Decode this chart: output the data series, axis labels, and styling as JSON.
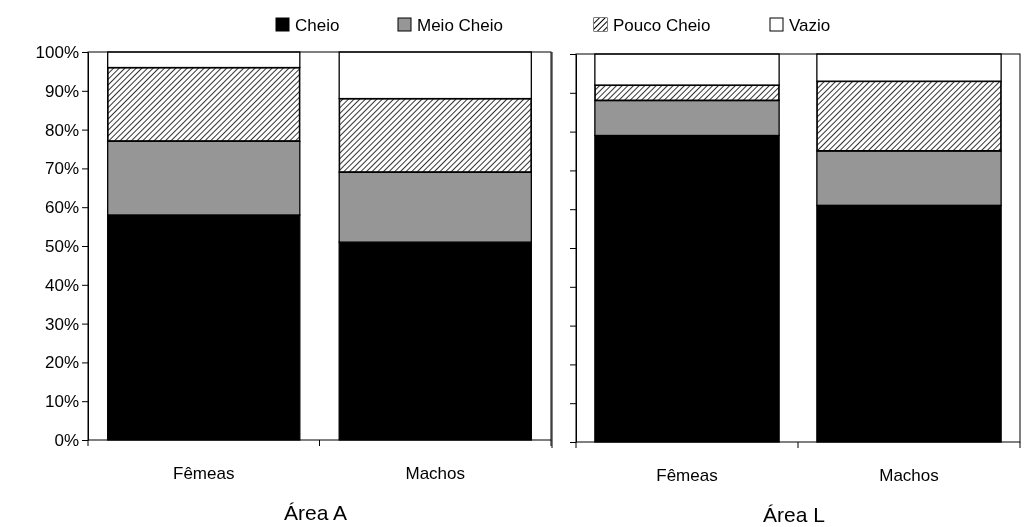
{
  "chart_data": [
    {
      "type": "bar",
      "xlabel": "Área A",
      "categories": [
        "Fêmeas",
        "Machos"
      ],
      "stacked": true,
      "ylim": [
        0,
        100
      ],
      "yticks": [
        {
          "value": 0,
          "label": "0%"
        },
        {
          "value": 10,
          "label": "10%"
        },
        {
          "value": 20,
          "label": "20%"
        },
        {
          "value": 30,
          "label": "30%"
        },
        {
          "value": 40,
          "label": "40%"
        },
        {
          "value": 50,
          "label": "50%"
        },
        {
          "value": 60,
          "label": "60%"
        },
        {
          "value": 70,
          "label": "70%"
        },
        {
          "value": 80,
          "label": "80%"
        },
        {
          "value": 90,
          "label": "90%"
        },
        {
          "value": 100,
          "label": "100%"
        }
      ],
      "legend": "top",
      "series": [
        {
          "name": "Cheio",
          "color": "#000000",
          "values": [
            58,
            51
          ]
        },
        {
          "name": "Meio Cheio",
          "color": "#969696",
          "values": [
            19,
            18
          ]
        },
        {
          "name": "Pouco Cheio",
          "color": "#000000",
          "values": [
            19,
            19
          ]
        },
        {
          "name": "Vazio",
          "color": "#ffffff",
          "values": [
            4,
            12
          ]
        }
      ]
    },
    {
      "type": "bar",
      "xlabel": "Área L",
      "categories": [
        "Fêmeas",
        "Machos"
      ],
      "stacked": true,
      "ylim": [
        0,
        100
      ],
      "yticks": [
        {
          "value": 0,
          "label": null
        },
        {
          "value": 10,
          "label": null
        },
        {
          "value": 20,
          "label": null
        },
        {
          "value": 30,
          "label": null
        },
        {
          "value": 40,
          "label": null
        },
        {
          "value": 50,
          "label": null
        },
        {
          "value": 60,
          "label": null
        },
        {
          "value": 70,
          "label": null
        },
        {
          "value": 80,
          "label": null
        },
        {
          "value": 90,
          "label": null
        },
        {
          "value": 100,
          "label": null
        }
      ],
      "tick_labels": "x",
      "series": [
        {
          "color": "#000000",
          "values": [
            79,
            61
          ]
        },
        {
          "color": "#969696",
          "values": [
            9,
            14
          ]
        },
        {
          "color": "#000000",
          "values": [
            4,
            18
          ]
        },
        {
          "color": "#ffffff",
          "values": [
            8,
            7
          ]
        }
      ]
    }
  ]
}
